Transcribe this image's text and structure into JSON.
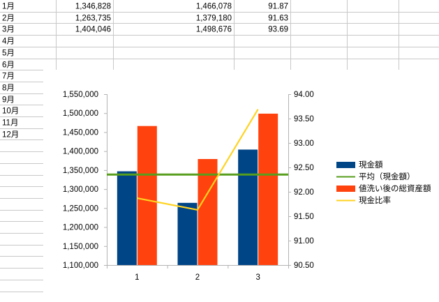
{
  "sheet": {
    "row_labels": [
      "1月",
      "2月",
      "3月",
      "4月",
      "5月",
      "6月",
      "7月",
      "8月",
      "9月",
      "10月",
      "11月",
      "12月"
    ],
    "rows": [
      {
        "col_b": "1,346,828",
        "col_c": "1,466,078",
        "col_d": "91.87"
      },
      {
        "col_b": "1,263,735",
        "col_c": "1,379,180",
        "col_d": "91.63"
      },
      {
        "col_b": "1,404,046",
        "col_c": "1,498,676",
        "col_d": "93.69"
      }
    ]
  },
  "chart_data": {
    "type": "bar",
    "categories": [
      "1",
      "2",
      "3"
    ],
    "series": [
      {
        "name": "現金額",
        "kind": "bar",
        "axis": "left",
        "color": "#004586",
        "values": [
          1346828,
          1263735,
          1404046
        ]
      },
      {
        "name": "平均（現金額）",
        "kind": "line",
        "axis": "left",
        "color": "#579d1c",
        "values": [
          1338203,
          1338203,
          1338203
        ]
      },
      {
        "name": "値洗い後の総資産額",
        "kind": "bar",
        "axis": "left",
        "color": "#ff420e",
        "values": [
          1466078,
          1379180,
          1498676
        ]
      },
      {
        "name": "現金比率",
        "kind": "line",
        "axis": "right",
        "color": "#ffd320",
        "values": [
          91.87,
          91.63,
          93.69
        ]
      }
    ],
    "y_left": {
      "min": 1100000,
      "max": 1550000,
      "step": 50000,
      "tick_labels": [
        "1,100,000",
        "1,150,000",
        "1,200,000",
        "1,250,000",
        "1,300,000",
        "1,350,000",
        "1,400,000",
        "1,450,000",
        "1,500,000",
        "1,550,000"
      ]
    },
    "y_right": {
      "min": 90.5,
      "max": 94.0,
      "step": 0.5,
      "tick_labels": [
        "90.50",
        "91.00",
        "91.50",
        "92.00",
        "92.50",
        "93.00",
        "93.50",
        "94.00"
      ]
    },
    "grid": false,
    "legend_position": "right"
  }
}
